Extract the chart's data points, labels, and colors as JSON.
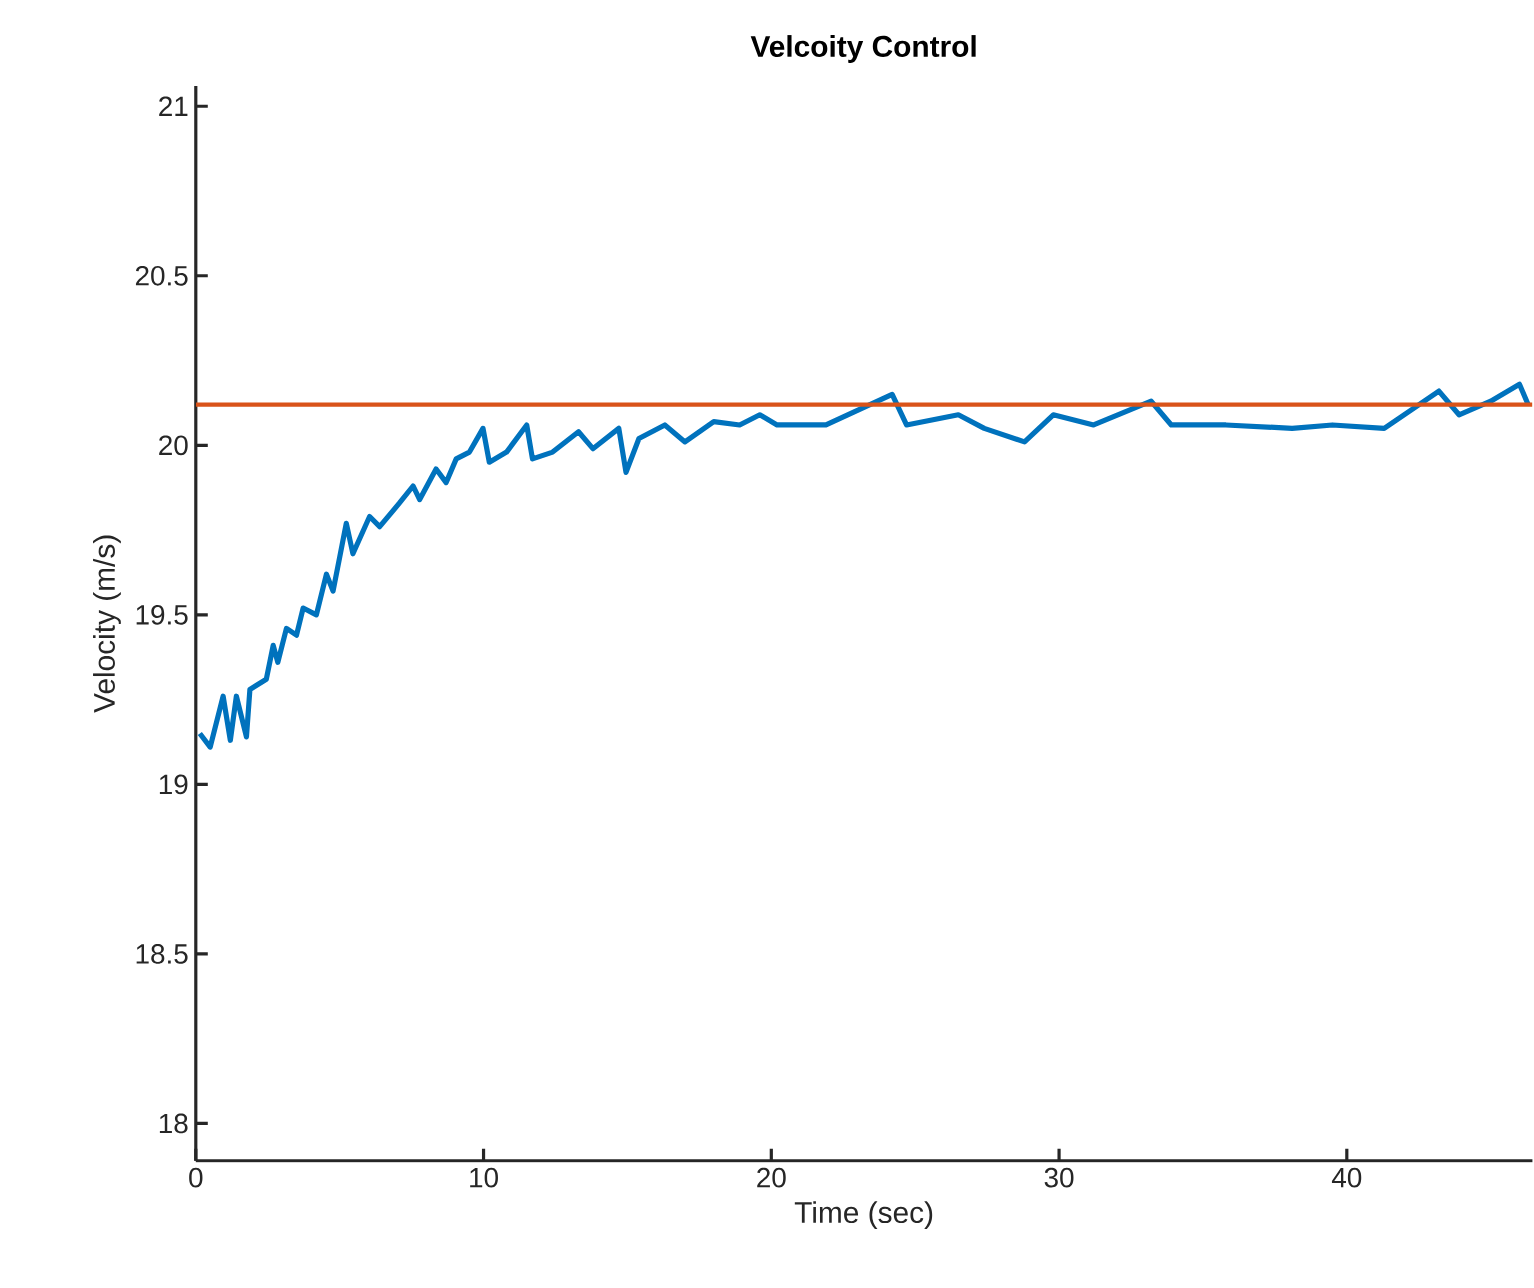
{
  "chart_data": {
    "type": "line",
    "title": "Velcoity Control",
    "xlabel": "Time (sec)",
    "ylabel": "Velocity (m/s)",
    "xlim": [
      0,
      46.45
    ],
    "ylim": [
      17.89,
      21.06
    ],
    "xticks": [
      0,
      10,
      20,
      30,
      40
    ],
    "yticks": [
      18,
      18.5,
      19,
      19.5,
      20,
      20.5,
      21
    ],
    "grid": false,
    "marker": "none",
    "line_style": "solid",
    "ref_lines": [
      {
        "axis": "y",
        "value": 20.12,
        "color": "#d95319",
        "line_style": "solid"
      }
    ],
    "series": [
      {
        "color": "#0072bd",
        "x": [
          0.14,
          0.5,
          0.95,
          1.2,
          1.41,
          1.76,
          1.88,
          2.45,
          2.69,
          2.85,
          3.15,
          3.5,
          3.73,
          4.19,
          4.54,
          4.77,
          5.0,
          5.23,
          5.46,
          6.04,
          6.39,
          7.08,
          7.55,
          7.78,
          8.35,
          8.7,
          9.05,
          9.51,
          9.98,
          10.2,
          10.8,
          11.5,
          11.7,
          12.4,
          13.3,
          13.8,
          14.7,
          14.95,
          15.4,
          16.3,
          17.0,
          18.0,
          18.9,
          19.6,
          20.2,
          21.9,
          24.2,
          24.7,
          26.5,
          27.4,
          28.8,
          29.8,
          31.2,
          33.2,
          33.9,
          35.8,
          38.1,
          39.5,
          41.3,
          43.2,
          43.9,
          45.0,
          46.0,
          46.3
        ],
        "values": [
          19.15,
          19.11,
          19.26,
          19.13,
          19.26,
          19.14,
          19.28,
          19.31,
          19.41,
          19.36,
          19.46,
          19.44,
          19.52,
          19.5,
          19.62,
          19.57,
          19.67,
          19.77,
          19.68,
          19.79,
          19.76,
          19.83,
          19.88,
          19.84,
          19.93,
          19.89,
          19.96,
          19.98,
          20.05,
          19.95,
          19.98,
          20.06,
          19.96,
          19.98,
          20.04,
          19.99,
          20.05,
          19.92,
          20.02,
          20.06,
          20.01,
          20.07,
          20.06,
          20.09,
          20.06,
          20.06,
          20.15,
          20.06,
          20.09,
          20.05,
          20.01,
          20.09,
          20.06,
          20.13,
          20.06,
          20.06,
          20.05,
          20.06,
          20.05,
          20.16,
          20.09,
          20.13,
          20.18,
          20.12
        ]
      }
    ]
  }
}
